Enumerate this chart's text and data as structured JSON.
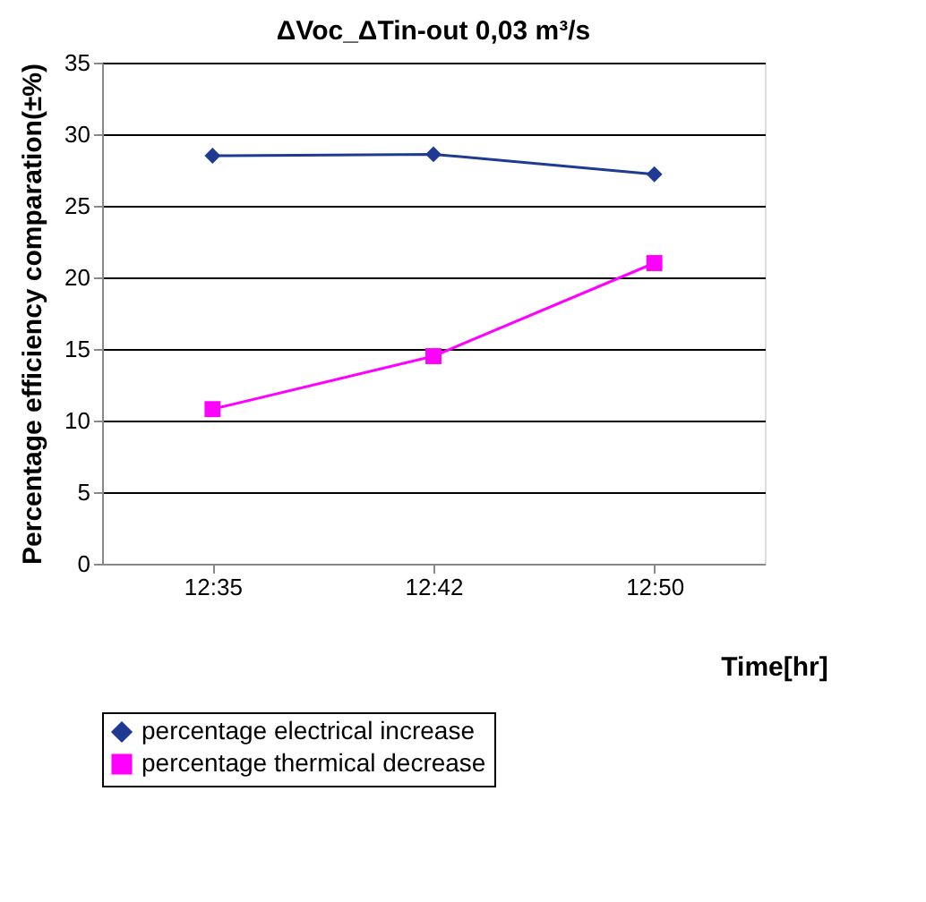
{
  "chart_data": {
    "type": "line",
    "title": "ΔVoc_ΔTin-out 0,03 m³/s",
    "xlabel": "Time[hr]",
    "ylabel": "Percentage efficiency comparation(±%)",
    "categories": [
      "12:35",
      "12:42",
      "12:50"
    ],
    "series": [
      {
        "name": "percentage electrical increase",
        "color": "#1f3a93",
        "marker": "diamond",
        "values": [
          28.5,
          28.6,
          27.2
        ]
      },
      {
        "name": "percentage thermical decrease",
        "color": "#ff00ff",
        "marker": "square",
        "values": [
          10.8,
          14.5,
          21.0
        ]
      }
    ],
    "ylim": [
      0,
      35
    ],
    "yticks": [
      0,
      5,
      10,
      15,
      20,
      25,
      30,
      35
    ],
    "grid": "y",
    "legend": "bottom",
    "line_style": "solid"
  }
}
